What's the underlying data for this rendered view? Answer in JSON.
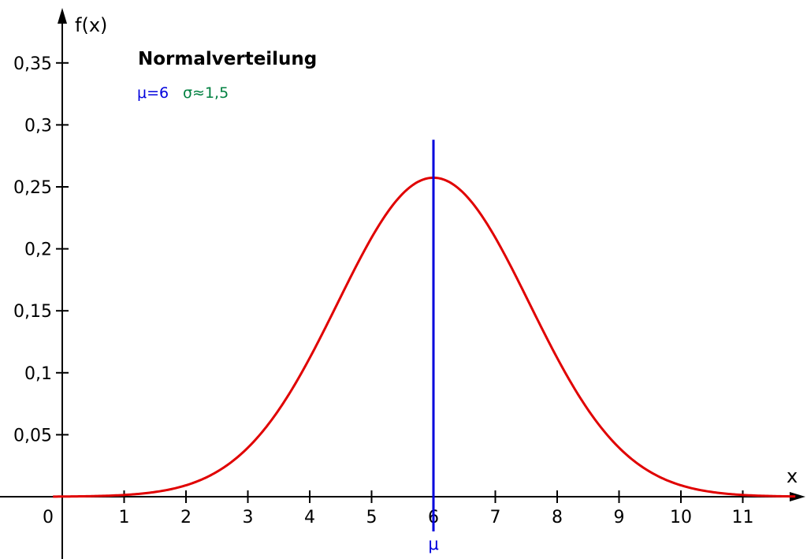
{
  "chart_data": {
    "type": "line",
    "title": "Normalverteilung",
    "parameters": {
      "mu_text": "μ=6",
      "sigma_text": "σ≈1,5"
    },
    "xlabel": "x",
    "ylabel": "f(x)",
    "origin_label": "0",
    "xlim": [
      0,
      11.85
    ],
    "ylim": [
      0,
      0.38
    ],
    "x_ticks": [
      {
        "value": 1,
        "label": "1"
      },
      {
        "value": 2,
        "label": "2"
      },
      {
        "value": 3,
        "label": "3"
      },
      {
        "value": 4,
        "label": "4"
      },
      {
        "value": 5,
        "label": "5"
      },
      {
        "value": 6,
        "label": "6"
      },
      {
        "value": 7,
        "label": "7"
      },
      {
        "value": 8,
        "label": "8"
      },
      {
        "value": 9,
        "label": "9"
      },
      {
        "value": 10,
        "label": "10"
      },
      {
        "value": 11,
        "label": "11"
      }
    ],
    "y_ticks": [
      {
        "value": 0.05,
        "label": "0,05"
      },
      {
        "value": 0.1,
        "label": "0,1"
      },
      {
        "value": 0.15,
        "label": "0,15"
      },
      {
        "value": 0.2,
        "label": "0,2"
      },
      {
        "value": 0.25,
        "label": "0,25"
      },
      {
        "value": 0.3,
        "label": "0,3"
      },
      {
        "value": 0.35,
        "label": "0,35"
      }
    ],
    "series": [
      {
        "color": "#e00000",
        "mu": 6,
        "sigma": 1.55,
        "x_range": [
          -0.15,
          11.85
        ]
      }
    ],
    "mean_line": {
      "x": 6,
      "y_top": 0.288,
      "y_bottom": -0.028,
      "label": "μ",
      "color": "#0000dd"
    },
    "grid": false,
    "colors": {
      "axis": "#000000",
      "curve": "#e00000",
      "mu": "#0000dd",
      "sigma": "#008040"
    }
  }
}
